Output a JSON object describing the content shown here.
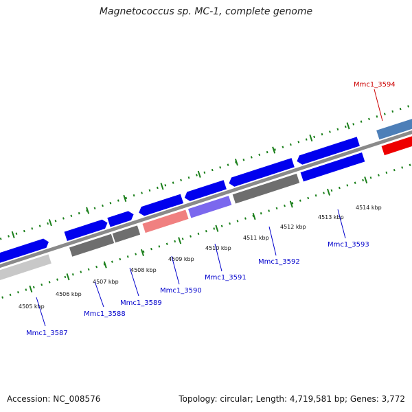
{
  "title": "Magnetococcus sp. MC-1, complete genome",
  "footer": {
    "accession": "Accession: NC_008576",
    "topology": "Topology: circular; Length: 4,719,581 bp; Genes: 3,772"
  },
  "kbp_labels": [
    "4505 kbp",
    "4506 kbp",
    "4507 kbp",
    "4508 kbp",
    "4509 kbp",
    "4510 kbp",
    "4511 kbp",
    "4512 kbp",
    "4513 kbp",
    "4514 kbp"
  ],
  "genes": [
    {
      "label": "Mmc1_3587",
      "color": "#0000cc"
    },
    {
      "label": "Mmc1_3588",
      "color": "#0000cc"
    },
    {
      "label": "Mmc1_3589",
      "color": "#0000cc"
    },
    {
      "label": "Mmc1_3590",
      "color": "#0000cc"
    },
    {
      "label": "Mmc1_3591",
      "color": "#0000cc"
    },
    {
      "label": "Mmc1_3592",
      "color": "#0000cc"
    },
    {
      "label": "Mmc1_3593",
      "color": "#0000cc"
    },
    {
      "label": "Mmc1_3594",
      "color": "#cc0000"
    }
  ]
}
